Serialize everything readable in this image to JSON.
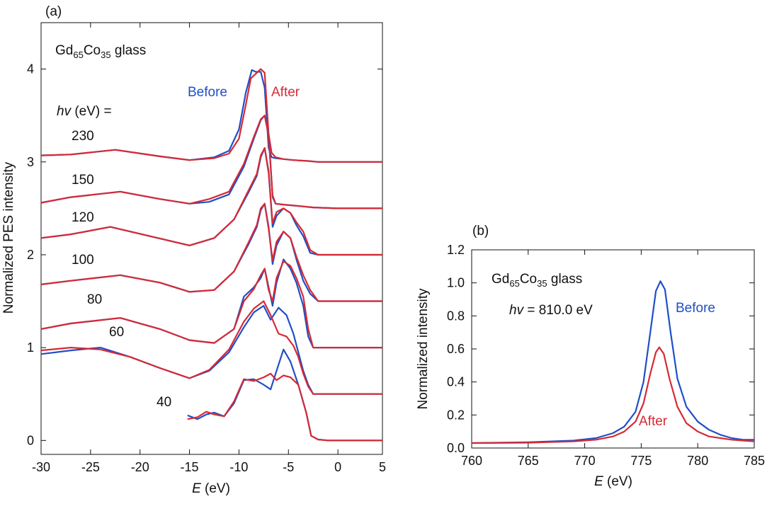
{
  "chart_data": [
    {
      "panel": "(a)",
      "type": "line",
      "title": "",
      "sample_prefix": "Gd",
      "sample_gd_sub": "65",
      "sample_co": "Co",
      "sample_co_sub": "35",
      "sample_suffix": " glass",
      "hv_label_symbol": "hv",
      "hv_label_rest": " (eV) =",
      "xlabel_symbol": "E",
      "xlabel_unit": " (eV)",
      "ylabel": "Normalized PES intensity",
      "xlim": [
        -30,
        4.5
      ],
      "ylim": [
        -0.15,
        4.5
      ],
      "xticks": [
        -30,
        -25,
        -20,
        -15,
        -10,
        -5,
        0,
        5
      ],
      "xtick_labels": [
        "-30",
        "-25",
        "-20",
        "-15",
        "-10",
        "-5",
        "0",
        "5"
      ],
      "yticks": [
        0,
        1,
        2,
        3,
        4
      ],
      "ytick_labels": [
        "0",
        "1",
        "2",
        "3",
        "4"
      ],
      "legend": [
        {
          "name": "Before",
          "color": "#1f4fc8"
        },
        {
          "name": "After",
          "color": "#d62a35"
        }
      ],
      "photon_energy_labels": [
        "230",
        "150",
        "120",
        "100",
        "80",
        "60",
        "40"
      ],
      "series": [
        {
          "hv": 230,
          "name": "Before",
          "color": "#1f4fc8",
          "x": [
            -30,
            -27,
            -22.5,
            -18,
            -15,
            -12.5,
            -11,
            -10,
            -9.3,
            -8.7,
            -8.3,
            -7.8,
            -7.4,
            -7.0,
            -6.7,
            -6.3,
            -5.5,
            -4.5,
            -3,
            -2,
            0,
            4.5
          ],
          "y": [
            3.07,
            3.08,
            3.13,
            3.06,
            3.02,
            3.05,
            3.12,
            3.35,
            3.75,
            3.99,
            3.97,
            3.97,
            3.8,
            3.15,
            3.05,
            3.04,
            3.03,
            3.02,
            3.01,
            3.0,
            3.0,
            3.0
          ]
        },
        {
          "hv": 230,
          "name": "After",
          "color": "#d62a35",
          "x": [
            -30,
            -27,
            -22.5,
            -18,
            -15,
            -12.5,
            -11,
            -10,
            -9.3,
            -8.8,
            -8.3,
            -7.8,
            -7.4,
            -7.0,
            -6.7,
            -6.3,
            -5.5,
            -4.5,
            -3,
            -2,
            0,
            4.5
          ],
          "y": [
            3.07,
            3.08,
            3.13,
            3.06,
            3.02,
            3.04,
            3.09,
            3.25,
            3.62,
            3.9,
            3.95,
            4.0,
            3.96,
            3.3,
            3.1,
            3.05,
            3.03,
            3.02,
            3.01,
            3.0,
            3.0,
            3.0
          ]
        },
        {
          "hv": 150,
          "name": "Before",
          "color": "#1f4fc8",
          "x": [
            -30,
            -27,
            -22,
            -18,
            -15,
            -13,
            -11,
            -9.5,
            -8.5,
            -7.8,
            -7.4,
            -7.0,
            -6.6,
            -6.3,
            -5.5,
            -4.5,
            -3.5,
            -2.5,
            0,
            4.5
          ],
          "y": [
            2.56,
            2.62,
            2.68,
            2.6,
            2.55,
            2.57,
            2.65,
            2.95,
            3.25,
            3.45,
            3.5,
            3.3,
            2.62,
            2.55,
            2.54,
            2.53,
            2.52,
            2.51,
            2.5,
            2.5
          ]
        },
        {
          "hv": 150,
          "name": "After",
          "color": "#d62a35",
          "x": [
            -30,
            -27,
            -22,
            -18,
            -15,
            -13,
            -11,
            -9.5,
            -8.5,
            -7.8,
            -7.4,
            -7.0,
            -6.6,
            -6.3,
            -5.5,
            -4.5,
            -3.5,
            -2.5,
            0,
            4.5
          ],
          "y": [
            2.56,
            2.62,
            2.68,
            2.6,
            2.55,
            2.6,
            2.68,
            2.98,
            3.27,
            3.46,
            3.5,
            3.28,
            2.64,
            2.55,
            2.54,
            2.53,
            2.52,
            2.51,
            2.5,
            2.5
          ]
        },
        {
          "hv": 120,
          "name": "Before",
          "color": "#1f4fc8",
          "x": [
            -30,
            -27,
            -23,
            -19,
            -15,
            -12.5,
            -10.5,
            -9,
            -8.2,
            -7.8,
            -7.4,
            -7.0,
            -6.6,
            -6.2,
            -5.5,
            -4.8,
            -4.2,
            -3.5,
            -2.8,
            -2,
            0,
            4.5
          ],
          "y": [
            2.18,
            2.22,
            2.3,
            2.2,
            2.1,
            2.18,
            2.38,
            2.68,
            2.85,
            3.05,
            3.15,
            2.9,
            2.3,
            2.42,
            2.5,
            2.45,
            2.32,
            2.2,
            2.02,
            2.0,
            2.0,
            2.0
          ]
        },
        {
          "hv": 120,
          "name": "After",
          "color": "#d62a35",
          "x": [
            -30,
            -27,
            -23,
            -19,
            -15,
            -12.5,
            -10.5,
            -9,
            -8.2,
            -7.8,
            -7.4,
            -7.0,
            -6.6,
            -6.2,
            -5.5,
            -4.8,
            -4.2,
            -3.5,
            -2.8,
            -2,
            0,
            4.5
          ],
          "y": [
            2.18,
            2.22,
            2.3,
            2.2,
            2.1,
            2.18,
            2.38,
            2.7,
            2.87,
            3.07,
            3.15,
            2.88,
            2.34,
            2.46,
            2.5,
            2.45,
            2.35,
            2.25,
            2.05,
            2.0,
            2.0,
            2.0
          ]
        },
        {
          "hv": 100,
          "name": "Before",
          "color": "#1f4fc8",
          "x": [
            -30,
            -27,
            -22,
            -18,
            -15,
            -12.5,
            -10.5,
            -9,
            -8.2,
            -7.8,
            -7.4,
            -7.0,
            -6.6,
            -6.2,
            -5.5,
            -4.8,
            -4.2,
            -3.5,
            -2.8,
            -2,
            0,
            4.5
          ],
          "y": [
            1.68,
            1.72,
            1.78,
            1.7,
            1.6,
            1.62,
            1.82,
            2.12,
            2.3,
            2.48,
            2.55,
            2.3,
            1.9,
            2.1,
            2.25,
            2.18,
            1.95,
            1.72,
            1.58,
            1.5,
            1.5,
            1.5
          ]
        },
        {
          "hv": 100,
          "name": "After",
          "color": "#d62a35",
          "x": [
            -30,
            -27,
            -22,
            -18,
            -15,
            -12.5,
            -10.5,
            -9,
            -8.2,
            -7.8,
            -7.4,
            -7.0,
            -6.6,
            -6.2,
            -5.5,
            -4.8,
            -4.2,
            -3.5,
            -2.8,
            -2,
            0,
            4.5
          ],
          "y": [
            1.68,
            1.72,
            1.78,
            1.7,
            1.6,
            1.62,
            1.82,
            2.14,
            2.32,
            2.5,
            2.55,
            2.28,
            1.94,
            2.14,
            2.25,
            2.18,
            1.98,
            1.78,
            1.62,
            1.5,
            1.5,
            1.5
          ]
        },
        {
          "hv": 80,
          "name": "Before",
          "color": "#1f4fc8",
          "x": [
            -30,
            -27,
            -22,
            -18,
            -15,
            -12.5,
            -10.5,
            -9.5,
            -8.5,
            -7.8,
            -7.4,
            -7.0,
            -6.6,
            -6.2,
            -5.5,
            -4.8,
            -4.2,
            -3.5,
            -3.0,
            -2.5,
            0,
            4.5
          ],
          "y": [
            1.2,
            1.26,
            1.32,
            1.2,
            1.08,
            1.05,
            1.2,
            1.55,
            1.65,
            1.75,
            1.85,
            1.65,
            1.45,
            1.7,
            1.95,
            1.85,
            1.7,
            1.45,
            1.12,
            1.0,
            1.0,
            1.0
          ]
        },
        {
          "hv": 80,
          "name": "After",
          "color": "#d62a35",
          "x": [
            -30,
            -27,
            -22,
            -18,
            -15,
            -12.5,
            -10.5,
            -9.5,
            -8.5,
            -7.8,
            -7.4,
            -7.0,
            -6.6,
            -6.2,
            -5.5,
            -4.8,
            -4.2,
            -3.5,
            -3.0,
            -2.5,
            0,
            4.5
          ],
          "y": [
            1.2,
            1.26,
            1.32,
            1.2,
            1.08,
            1.05,
            1.2,
            1.5,
            1.63,
            1.78,
            1.85,
            1.62,
            1.5,
            1.75,
            1.93,
            1.88,
            1.75,
            1.55,
            1.2,
            1.0,
            1.0,
            1.0
          ]
        },
        {
          "hv": 60,
          "name": "Before",
          "color": "#1f4fc8",
          "x": [
            -30,
            -27,
            -24,
            -21,
            -18,
            -15,
            -13,
            -11,
            -9.5,
            -8.5,
            -7.5,
            -6.8,
            -6.0,
            -5.2,
            -4.5,
            -4.0,
            -3.5,
            -3.0,
            -2.5,
            0,
            4.5
          ],
          "y": [
            0.93,
            0.97,
            1.0,
            0.9,
            0.78,
            0.67,
            0.75,
            0.95,
            1.22,
            1.38,
            1.45,
            1.3,
            1.43,
            1.35,
            1.15,
            0.95,
            0.75,
            0.6,
            0.5,
            0.5,
            0.5
          ]
        },
        {
          "hv": 60,
          "name": "After",
          "color": "#d62a35",
          "x": [
            -30,
            -27,
            -24,
            -21,
            -18,
            -15,
            -13,
            -11,
            -9.5,
            -8.5,
            -7.5,
            -6.8,
            -6.0,
            -5.2,
            -4.5,
            -4.0,
            -3.5,
            -3.0,
            -2.5,
            0,
            4.5
          ],
          "y": [
            0.97,
            1.0,
            0.98,
            0.9,
            0.78,
            0.67,
            0.76,
            0.98,
            1.28,
            1.42,
            1.5,
            1.35,
            1.15,
            1.12,
            1.02,
            0.9,
            0.72,
            0.58,
            0.5,
            0.5,
            0.5
          ]
        },
        {
          "hv": 40,
          "name": "Before",
          "color": "#1f4fc8",
          "x": [
            -15.2,
            -14.2,
            -13.3,
            -12.5,
            -11.5,
            -10.5,
            -9.5,
            -8.5,
            -7.5,
            -6.8,
            -6.2,
            -5.5,
            -4.8,
            -4.0,
            -3.2,
            -2.7,
            -2.0,
            -1.0,
            0,
            4.5
          ],
          "y": [
            0.27,
            0.23,
            0.28,
            0.3,
            0.26,
            0.4,
            0.65,
            0.66,
            0.6,
            0.55,
            0.75,
            0.98,
            0.85,
            0.6,
            0.3,
            0.05,
            0.01,
            0.0,
            0.0,
            0.0
          ]
        },
        {
          "hv": 40,
          "name": "After",
          "color": "#d62a35",
          "x": [
            -15.2,
            -14.2,
            -13.3,
            -12.5,
            -11.5,
            -10.5,
            -9.5,
            -8.5,
            -7.5,
            -6.8,
            -6.2,
            -5.5,
            -4.8,
            -4.0,
            -3.2,
            -2.7,
            -2.0,
            -1.0,
            0,
            4.5
          ],
          "y": [
            0.23,
            0.25,
            0.31,
            0.28,
            0.26,
            0.42,
            0.66,
            0.64,
            0.68,
            0.72,
            0.65,
            0.7,
            0.68,
            0.6,
            0.3,
            0.05,
            0.01,
            0.0,
            0.0,
            0.0
          ]
        }
      ]
    },
    {
      "panel": "(b)",
      "type": "line",
      "title": "",
      "sample_prefix": "Gd",
      "sample_gd_sub": "65",
      "sample_co": "Co",
      "sample_co_sub": "35",
      "sample_suffix": " glass",
      "hv_symbol": "hv",
      "hv_value_text": " = 810.0 eV",
      "xlabel_symbol": "E",
      "xlabel_unit": " (eV)",
      "ylabel": "Normalized intensity",
      "xlim": [
        760,
        785
      ],
      "ylim": [
        0.0,
        1.2
      ],
      "xticks": [
        760,
        765,
        770,
        775,
        780,
        785
      ],
      "xtick_labels": [
        "760",
        "765",
        "770",
        "775",
        "780",
        "785"
      ],
      "yticks": [
        0.0,
        0.2,
        0.4,
        0.6,
        0.8,
        1.0,
        1.2
      ],
      "ytick_labels": [
        "0.0",
        "0.2",
        "0.4",
        "0.6",
        "0.8",
        "1.0",
        "1.2"
      ],
      "legend": [
        {
          "name": "Before",
          "color": "#1f4fc8"
        },
        {
          "name": "After",
          "color": "#d62a35"
        }
      ],
      "series": [
        {
          "name": "Before",
          "color": "#1f4fc8",
          "x": [
            760,
            765,
            769,
            771,
            772.5,
            773.5,
            774.5,
            775.2,
            775.8,
            776.3,
            776.7,
            777.1,
            777.6,
            778.2,
            779,
            780,
            781,
            782,
            783,
            784,
            785
          ],
          "y": [
            0.03,
            0.035,
            0.045,
            0.06,
            0.09,
            0.13,
            0.22,
            0.4,
            0.7,
            0.95,
            1.01,
            0.96,
            0.7,
            0.42,
            0.25,
            0.16,
            0.11,
            0.08,
            0.06,
            0.05,
            0.05
          ]
        },
        {
          "name": "After",
          "color": "#d62a35",
          "x": [
            760,
            765,
            769,
            771,
            772.5,
            773.5,
            774.5,
            775.2,
            775.8,
            776.3,
            776.6,
            777.0,
            777.5,
            778.2,
            779,
            780,
            781,
            782,
            783,
            784,
            785
          ],
          "y": [
            0.03,
            0.032,
            0.04,
            0.05,
            0.07,
            0.1,
            0.16,
            0.27,
            0.45,
            0.58,
            0.61,
            0.57,
            0.42,
            0.25,
            0.15,
            0.1,
            0.07,
            0.06,
            0.05,
            0.045,
            0.04
          ]
        }
      ]
    }
  ]
}
